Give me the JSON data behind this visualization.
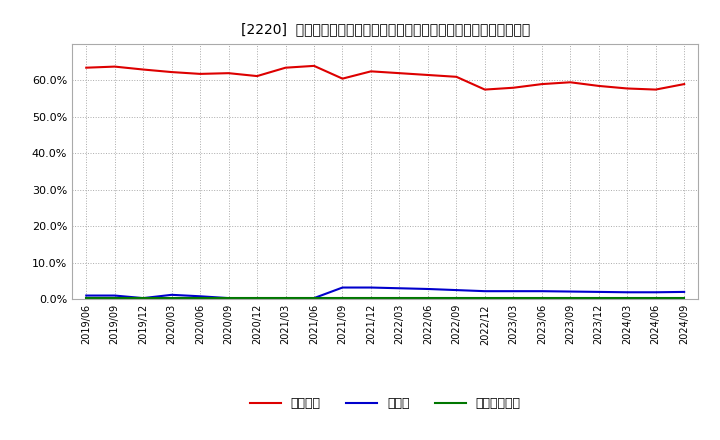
{
  "title": "[2220]  自己資本、のれん、繰延税金資産の総資産に対する比率の推移",
  "dates": [
    "2019/06",
    "2019/09",
    "2019/12",
    "2020/03",
    "2020/06",
    "2020/09",
    "2020/12",
    "2021/03",
    "2021/06",
    "2021/09",
    "2021/12",
    "2022/03",
    "2022/06",
    "2022/09",
    "2022/12",
    "2023/03",
    "2023/06",
    "2023/09",
    "2023/12",
    "2024/03",
    "2024/06",
    "2024/09"
  ],
  "jiko_shihon": [
    63.5,
    63.8,
    63.0,
    62.3,
    61.8,
    62.0,
    61.2,
    63.5,
    64.0,
    60.5,
    62.5,
    62.0,
    61.5,
    61.0,
    57.5,
    58.0,
    59.0,
    59.5,
    58.5,
    57.8,
    57.5,
    59.0
  ],
  "noren": [
    1.0,
    1.0,
    0.3,
    1.2,
    0.8,
    0.3,
    0.2,
    0.3,
    0.3,
    3.2,
    3.2,
    3.0,
    2.8,
    2.5,
    2.2,
    2.2,
    2.2,
    2.1,
    2.0,
    1.9,
    1.9,
    2.0
  ],
  "kurinobe_zeikinn": [
    0.2,
    0.2,
    0.2,
    0.2,
    0.2,
    0.2,
    0.2,
    0.2,
    0.2,
    0.2,
    0.2,
    0.2,
    0.2,
    0.2,
    0.2,
    0.2,
    0.2,
    0.2,
    0.2,
    0.2,
    0.2,
    0.2
  ],
  "jiko_color": "#dd0000",
  "noren_color": "#0000cc",
  "kurinobe_color": "#007700",
  "background_color": "#ffffff",
  "grid_color": "#aaaaaa",
  "plot_bg_color": "#ffffff",
  "ylim": [
    0,
    70
  ],
  "yticks": [
    0,
    10,
    20,
    30,
    40,
    50,
    60
  ],
  "legend_labels": [
    "自己資本",
    "のれん",
    "繰延税金資産"
  ]
}
